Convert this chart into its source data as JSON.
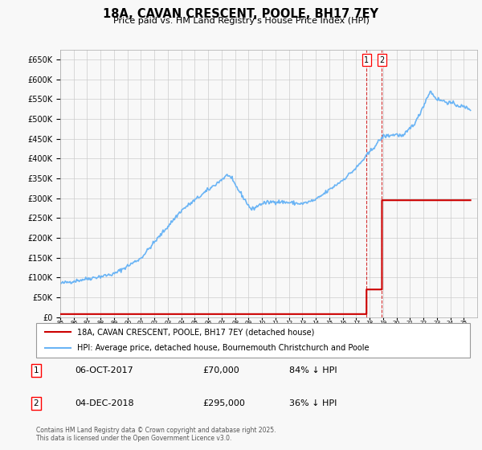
{
  "title": "18A, CAVAN CRESCENT, POOLE, BH17 7EY",
  "subtitle": "Price paid vs. HM Land Registry's House Price Index (HPI)",
  "legend_line1": "18A, CAVAN CRESCENT, POOLE, BH17 7EY (detached house)",
  "legend_line2": "HPI: Average price, detached house, Bournemouth Christchurch and Poole",
  "footnote": "Contains HM Land Registry data © Crown copyright and database right 2025.\nThis data is licensed under the Open Government Licence v3.0.",
  "table_rows": [
    {
      "num": "1",
      "date": "06-OCT-2017",
      "price": "£70,000",
      "hpi": "84% ↓ HPI"
    },
    {
      "num": "2",
      "date": "04-DEC-2018",
      "price": "£295,000",
      "hpi": "36% ↓ HPI"
    }
  ],
  "sale1_year": 2017.77,
  "sale1_price": 70000,
  "sale2_year": 2018.92,
  "sale2_price": 295000,
  "hpi_color": "#6ab4f5",
  "sale_color": "#cc0000",
  "background_color": "#f8f8f8",
  "grid_color": "#cccccc",
  "ylim": [
    0,
    675000
  ],
  "xlim_start": 1995,
  "xlim_end": 2026
}
